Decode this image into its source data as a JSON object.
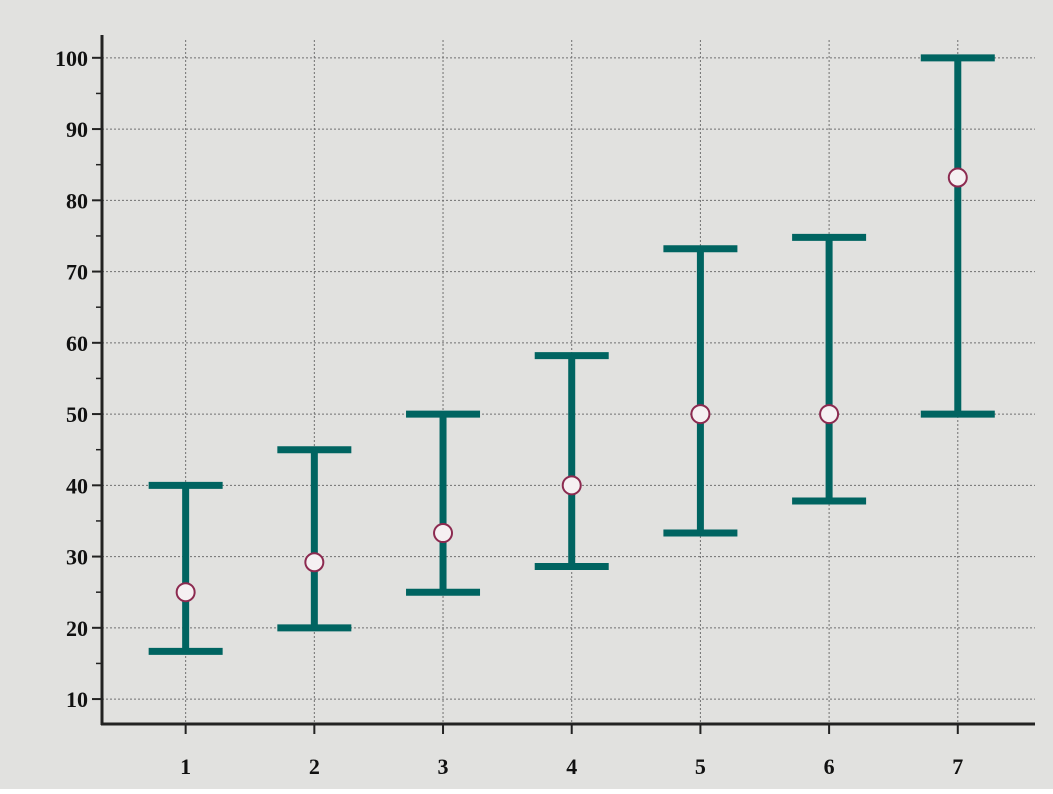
{
  "chart_data": {
    "type": "errorbar",
    "title": "",
    "xlabel": "",
    "ylabel": "",
    "x": [
      1,
      2,
      3,
      4,
      5,
      6,
      7
    ],
    "x_tick_labels": [
      "1",
      "2",
      "3",
      "4",
      "5",
      "6",
      "7"
    ],
    "y_ticks": [
      10,
      20,
      30,
      40,
      50,
      60,
      70,
      80,
      90,
      100
    ],
    "y_tick_labels": [
      "10",
      "20",
      "30",
      "40",
      "50",
      "60",
      "70",
      "80",
      "90",
      "100"
    ],
    "xlim": [
      0.35,
      7.6
    ],
    "ylim": [
      6.5,
      102.5
    ],
    "grid": true,
    "legend": "none",
    "series": [
      {
        "values": [
          25,
          29.2,
          33.3,
          40,
          50,
          50,
          83.2
        ],
        "lower": [
          16.7,
          20,
          25,
          28.6,
          33.3,
          37.8,
          50
        ],
        "upper": [
          40,
          45,
          50,
          58.2,
          73.2,
          74.8,
          100
        ]
      }
    ]
  },
  "colors": {
    "background": "#e1e1df",
    "errorbar": "#006461",
    "marker_fill": "#f5f0f2",
    "marker_stroke": "#8c2a50",
    "axis": "#222222",
    "grid": "#707070"
  }
}
